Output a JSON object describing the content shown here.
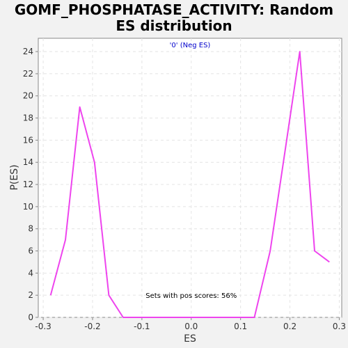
{
  "chart_data": {
    "type": "line",
    "title_line1": "GOMF_PHOSPHATASE_ACTIVITY: Random",
    "title_line2": "ES distribution",
    "xlabel": "ES",
    "ylabel": "P(ES)",
    "xlim": [
      -0.31,
      0.305
    ],
    "ylim": [
      0,
      25.2
    ],
    "x_ticks": [
      -0.3,
      -0.2,
      -0.1,
      0.0,
      0.1,
      0.2,
      0.3
    ],
    "x_tick_labels": [
      "-0.3",
      "-0.2",
      "-0.1",
      "0.0",
      "0.1",
      "0.2",
      "0.3"
    ],
    "y_ticks": [
      0,
      2,
      4,
      6,
      8,
      10,
      12,
      14,
      16,
      18,
      20,
      22,
      24
    ],
    "y_tick_labels": [
      "0",
      "2",
      "4",
      "6",
      "8",
      "10",
      "12",
      "14",
      "16",
      "18",
      "20",
      "22",
      "24"
    ],
    "grid": true,
    "legend_position": "top-center",
    "series": [
      {
        "name": "'0' (Neg ES)",
        "color": "#ee44ee",
        "x": [
          -0.285,
          -0.255,
          -0.226,
          -0.196,
          -0.167,
          -0.138,
          -0.108,
          -0.079,
          -0.049,
          -0.02,
          0.01,
          0.039,
          0.069,
          0.098,
          0.128,
          0.16,
          0.19,
          0.22,
          0.25,
          0.28
        ],
        "y": [
          2,
          7,
          19,
          14,
          2,
          0,
          0,
          0,
          0,
          0,
          0,
          0,
          0,
          0,
          0,
          6,
          15,
          24,
          6,
          5
        ]
      }
    ],
    "annotation": "Sets with pos scores: 56%",
    "annotation_position": {
      "x": 0.0,
      "y": 2
    }
  }
}
